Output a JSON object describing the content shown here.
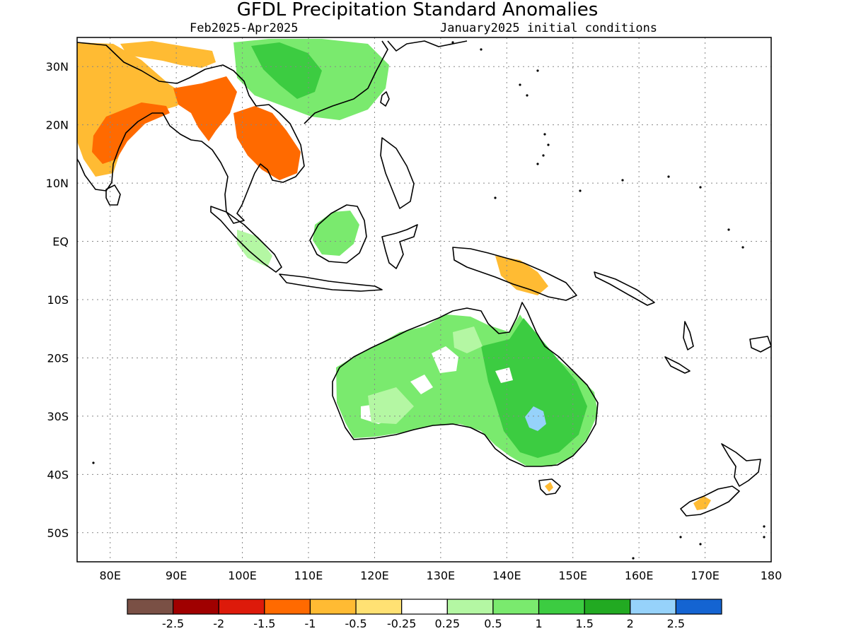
{
  "map": {
    "title": "GFDL Precipitation Standard Anomalies",
    "period": "Feb2025-Apr2025",
    "initial_conditions": "January2025 initial conditions",
    "lon_range": [
      75,
      180
    ],
    "lat_range": [
      -55,
      35
    ],
    "lon_ticks": [
      {
        "lon": 80,
        "label": "80E"
      },
      {
        "lon": 90,
        "label": "90E"
      },
      {
        "lon": 100,
        "label": "100E"
      },
      {
        "lon": 110,
        "label": "110E"
      },
      {
        "lon": 120,
        "label": "120E"
      },
      {
        "lon": 130,
        "label": "130E"
      },
      {
        "lon": 140,
        "label": "140E"
      },
      {
        "lon": 150,
        "label": "150E"
      },
      {
        "lon": 160,
        "label": "160E"
      },
      {
        "lon": 170,
        "label": "170E"
      },
      {
        "lon": 180,
        "label": "180"
      }
    ],
    "lat_ticks": [
      {
        "lat": 30,
        "label": "30N"
      },
      {
        "lat": 20,
        "label": "20N"
      },
      {
        "lat": 10,
        "label": "10N"
      },
      {
        "lat": 0,
        "label": "EQ"
      },
      {
        "lat": -10,
        "label": "10S"
      },
      {
        "lat": -20,
        "label": "20S"
      },
      {
        "lat": -30,
        "label": "30S"
      },
      {
        "lat": -40,
        "label": "40S"
      },
      {
        "lat": -50,
        "label": "50S"
      }
    ],
    "grid": true
  },
  "legend": {
    "colors": [
      "#7a5045",
      "#a00000",
      "#dd1a0a",
      "#ff6a00",
      "#ffbb33",
      "#ffe173",
      "#ffffff",
      "#b4f7a3",
      "#7aea6e",
      "#3ccc41",
      "#22aa22",
      "#96d2fa",
      "#1464d2"
    ],
    "labels": [
      "-2.5",
      "-2",
      "-1.5",
      "-1",
      "-0.5",
      "-0.25",
      "0.25",
      "0.5",
      "1",
      "1.5",
      "2",
      "2.5"
    ]
  },
  "anomaly_regions": [
    {
      "name": "india-west-dry",
      "level": -0.5,
      "color": "#ffbb33"
    },
    {
      "name": "india-core-dry",
      "level": -1,
      "color": "#ff6a00"
    },
    {
      "name": "myanmar-dry",
      "level": -1,
      "color": "#ff6a00"
    },
    {
      "name": "thailand-laos-dry",
      "level": -1,
      "color": "#ff6a00"
    },
    {
      "name": "himalaya-dry",
      "level": -0.5,
      "color": "#ffbb33"
    },
    {
      "name": "south-china-wet",
      "level": 0.5,
      "color": "#7aea6e"
    },
    {
      "name": "china-core-wet",
      "level": 1.5,
      "color": "#3ccc41"
    },
    {
      "name": "borneo-wet",
      "level": 0.5,
      "color": "#7aea6e"
    },
    {
      "name": "sumatra-wet",
      "level": 0.25,
      "color": "#b4f7a3"
    },
    {
      "name": "new-guinea-dry",
      "level": -0.5,
      "color": "#ffbb33"
    },
    {
      "name": "australia-wet",
      "level": 0.5,
      "color": "#7aea6e"
    },
    {
      "name": "queensland-wet",
      "level": 1.5,
      "color": "#3ccc41"
    },
    {
      "name": "nsw-peak",
      "level": 2,
      "color": "#96d2fa"
    },
    {
      "name": "tasmania-dry",
      "level": -0.5,
      "color": "#ffbb33"
    },
    {
      "name": "new-zealand-south-dry",
      "level": -0.5,
      "color": "#ffbb33"
    }
  ]
}
